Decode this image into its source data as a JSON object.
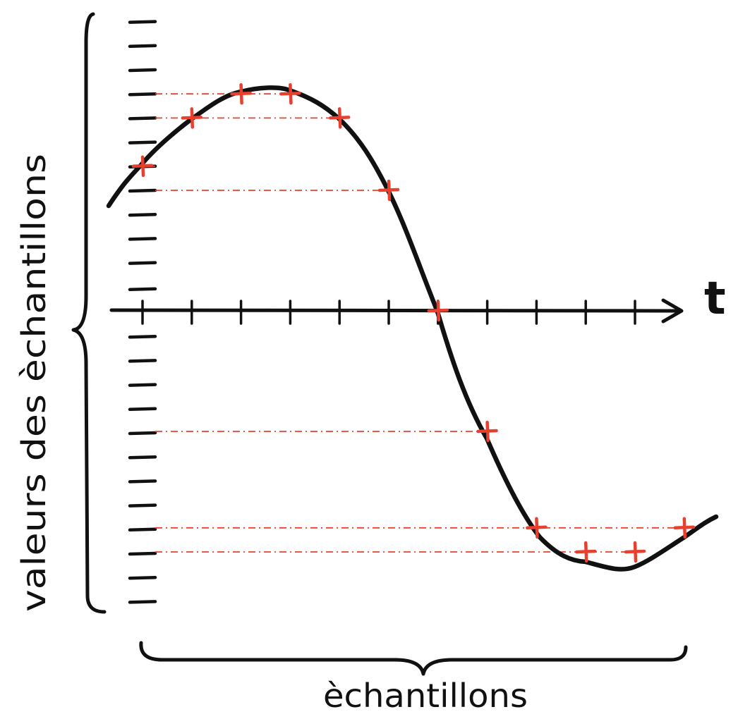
{
  "labels": {
    "t_axis": "t",
    "y_bracket_label": "valeurs des èchantillons",
    "x_bracket_label": "èchantillons"
  },
  "colors": {
    "ink": "#111111",
    "samples": "#e8402f"
  },
  "chart_data": {
    "type": "line",
    "description_of_signal": "sinusoidal",
    "x_axis_label": "t",
    "sample_count": 12,
    "sample_x_index": [
      0,
      1,
      2,
      3,
      4,
      5,
      6,
      7,
      8,
      9,
      10,
      11
    ],
    "sample_values": [
      6,
      8,
      9,
      9,
      8,
      5,
      0,
      -5,
      -9,
      -10,
      -10,
      -9
    ],
    "y_ticks_above_axis": 12,
    "y_ticks_below_axis": 12
  }
}
